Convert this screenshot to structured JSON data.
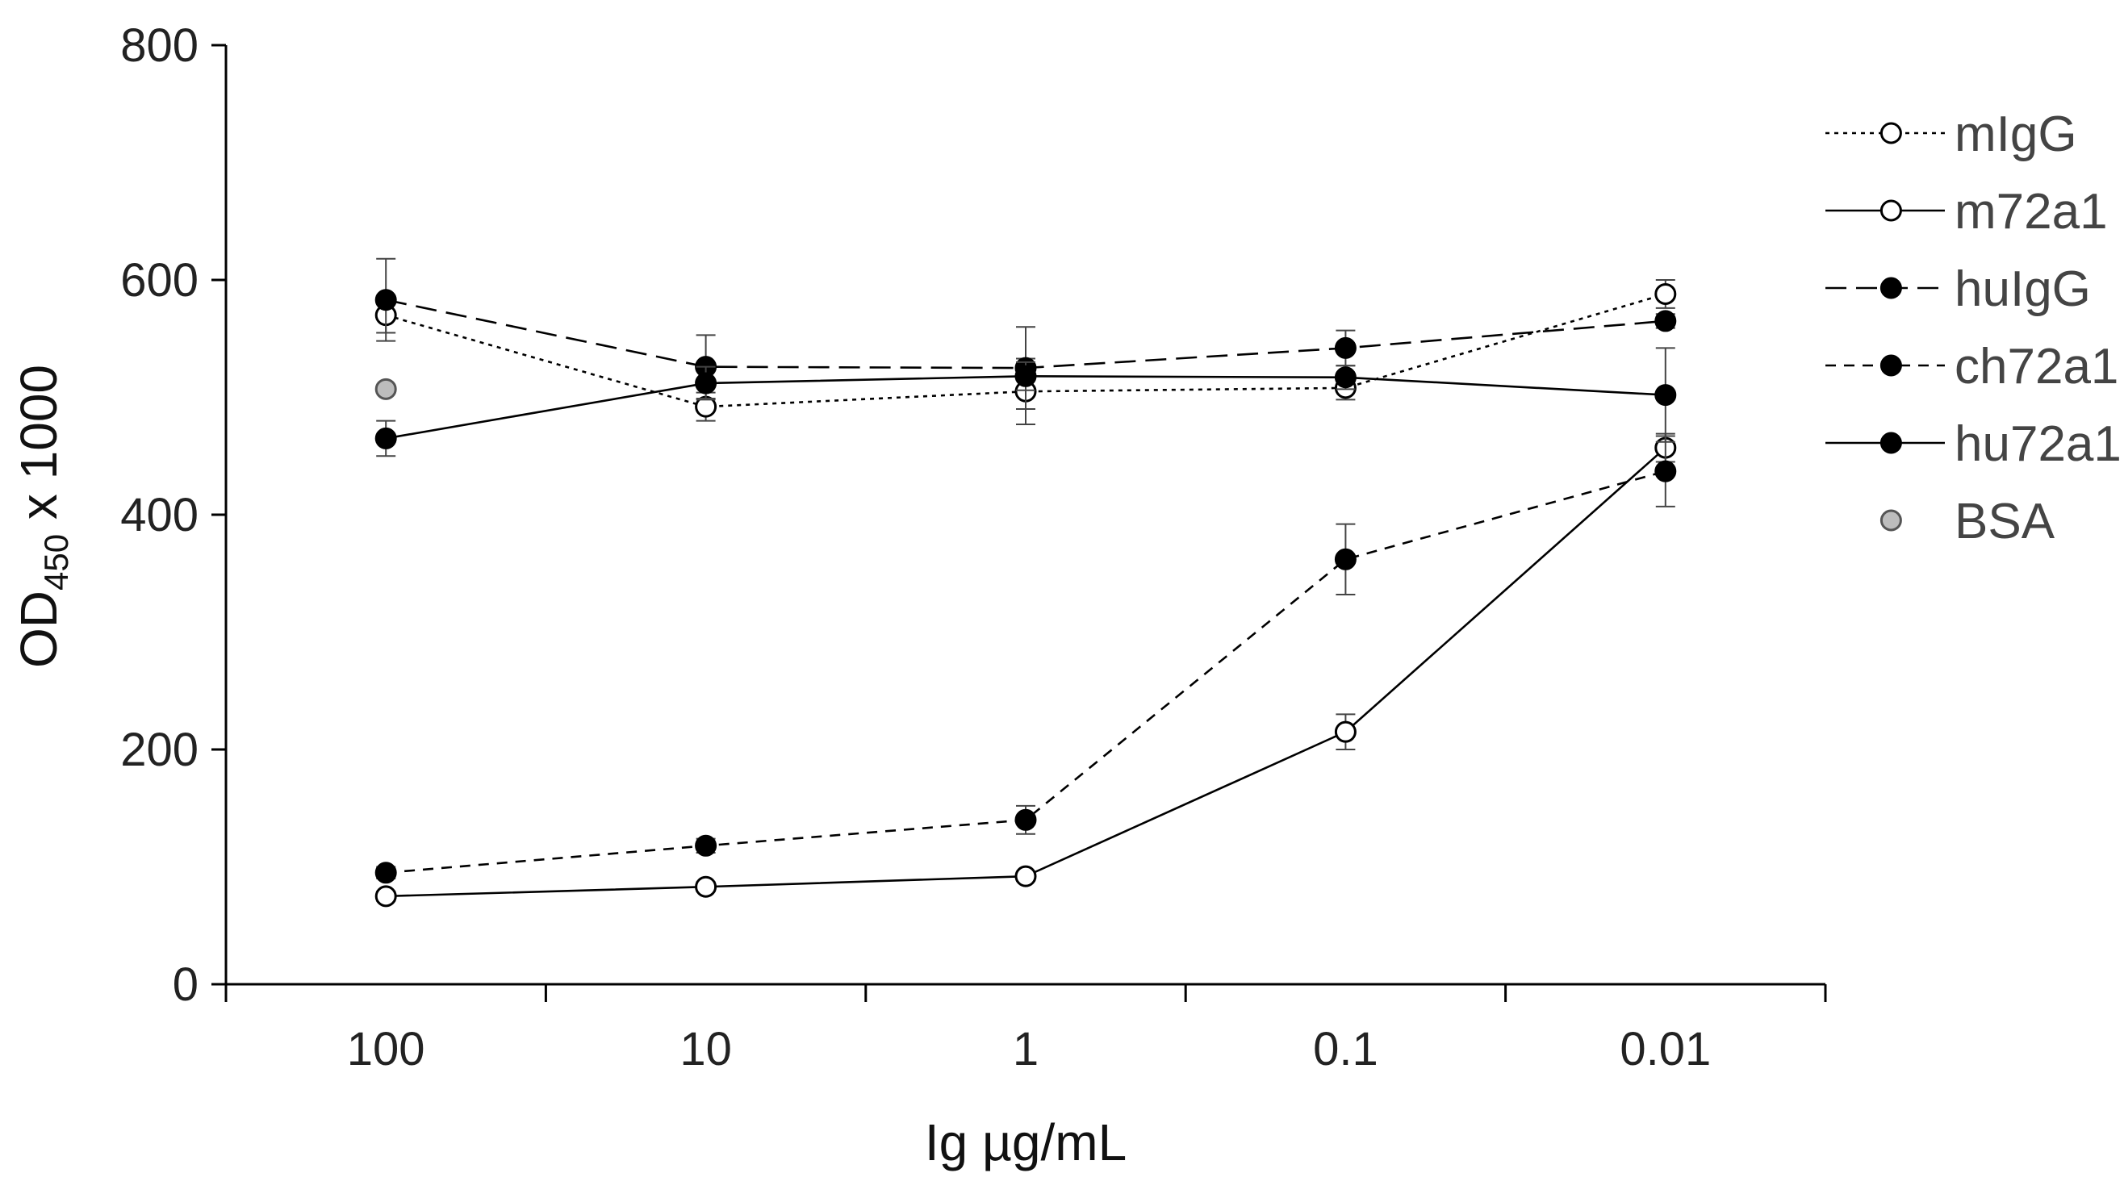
{
  "chart_data": {
    "type": "line",
    "title": "",
    "xlabel": "Ig µg/mL",
    "ylabel_main": "OD",
    "ylabel_sub": "450",
    "ylabel_tail": " x 1000",
    "categories": [
      "100",
      "10",
      "1",
      "0.1",
      "0.01"
    ],
    "yticks": [
      "0",
      "200",
      "400",
      "600",
      "800"
    ],
    "ylim": [
      0,
      800
    ],
    "grid": false,
    "legend_position": "right",
    "series": [
      {
        "name": "mIgG",
        "marker": "open",
        "dash": "dotted",
        "values": [
          570,
          492,
          505,
          508,
          588
        ],
        "errors": [
          15,
          12,
          28,
          10,
          12
        ]
      },
      {
        "name": "m72a1",
        "marker": "open",
        "dash": "solid",
        "values": [
          75,
          83,
          92,
          215,
          457
        ],
        "errors": [
          4,
          4,
          4,
          15,
          12
        ]
      },
      {
        "name": "huIgG",
        "marker": "filled",
        "dash": "long",
        "values": [
          583,
          526,
          525,
          542,
          565
        ],
        "errors": [
          35,
          27,
          35,
          15,
          6
        ]
      },
      {
        "name": "ch72a1",
        "marker": "filled",
        "dash": "short",
        "values": [
          95,
          118,
          140,
          362,
          437
        ],
        "errors": [
          5,
          6,
          12,
          30,
          30
        ]
      },
      {
        "name": "hu72a1",
        "marker": "filled",
        "dash": "solid",
        "values": [
          465,
          512,
          518,
          517,
          502
        ],
        "errors": [
          15,
          14,
          12,
          10,
          40
        ]
      },
      {
        "name": "BSA",
        "marker": "gray",
        "dash": "none",
        "values": [
          507,
          null,
          null,
          null,
          null
        ],
        "errors": [
          0,
          0,
          0,
          0,
          0
        ]
      }
    ]
  }
}
